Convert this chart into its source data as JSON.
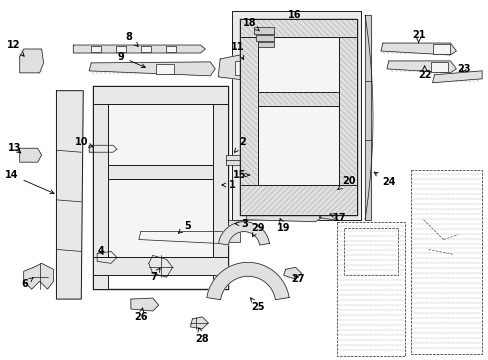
{
  "bg_color": "#ffffff",
  "lc": "#1a1a1a",
  "lc_light": "#555555",
  "hatch_color": "#888888",
  "fig_width": 4.89,
  "fig_height": 3.6,
  "dpi": 100
}
